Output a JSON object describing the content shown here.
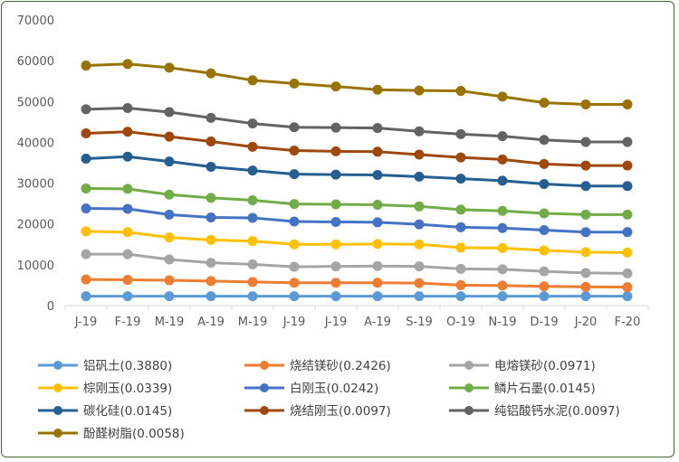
{
  "chart_data": {
    "type": "line",
    "title": "",
    "xlabel": "",
    "ylabel": "",
    "ylim": [
      0,
      70000
    ],
    "yticks": [
      0,
      10000,
      20000,
      30000,
      40000,
      50000,
      60000,
      70000
    ],
    "grid": false,
    "legend_position": "bottom",
    "categories": [
      "J-19",
      "F-19",
      "M-19",
      "A-19",
      "M-19",
      "J-19",
      "J-19",
      "A-19",
      "S-19",
      "O-19",
      "N-19",
      "D-19",
      "J-20",
      "F-20"
    ],
    "series": [
      {
        "name": "铝矾土(0.3880)",
        "color": "#5b9bd5",
        "values": [
          2300,
          2300,
          2300,
          2300,
          2300,
          2300,
          2300,
          2300,
          2300,
          2300,
          2300,
          2300,
          2300,
          2300
        ]
      },
      {
        "name": "烧结镁砂(0.2426)",
        "color": "#ed7d31",
        "values": [
          6400,
          6300,
          6200,
          6000,
          5800,
          5600,
          5600,
          5600,
          5500,
          5000,
          4900,
          4700,
          4600,
          4500
        ]
      },
      {
        "name": "电熔镁砂(0.0971)",
        "color": "#a5a5a5",
        "values": [
          12600,
          12600,
          11300,
          10500,
          10100,
          9500,
          9600,
          9700,
          9600,
          9000,
          8900,
          8400,
          8000,
          7900
        ]
      },
      {
        "name": "棕刚玉(0.0339)",
        "color": "#ffc000",
        "values": [
          18200,
          18000,
          16700,
          16100,
          15800,
          15000,
          15000,
          15100,
          15000,
          14200,
          14100,
          13500,
          13100,
          13000
        ]
      },
      {
        "name": "白刚玉(0.0242)",
        "color": "#4472c4",
        "values": [
          23800,
          23700,
          22300,
          21600,
          21500,
          20600,
          20500,
          20400,
          19900,
          19200,
          19000,
          18500,
          18000,
          18000
        ]
      },
      {
        "name": "鳞片石墨(0.0145)",
        "color": "#70ad47",
        "values": [
          28700,
          28600,
          27200,
          26400,
          25800,
          24900,
          24800,
          24700,
          24300,
          23500,
          23200,
          22600,
          22300,
          22300
        ]
      },
      {
        "name": "碳化硅(0.0145)",
        "color": "#255e91",
        "values": [
          36000,
          36500,
          35300,
          34000,
          33100,
          32200,
          32100,
          32000,
          31600,
          31100,
          30600,
          29800,
          29300,
          29300
        ]
      },
      {
        "name": "烧结刚玉(0.0097)",
        "color": "#9e480e",
        "values": [
          42200,
          42600,
          41400,
          40200,
          38900,
          38000,
          37800,
          37700,
          37000,
          36300,
          35800,
          34700,
          34300,
          34300
        ]
      },
      {
        "name": "纯铝酸钙水泥(0.0097)",
        "color": "#636363",
        "values": [
          48100,
          48400,
          47400,
          46000,
          44600,
          43700,
          43600,
          43500,
          42700,
          42000,
          41500,
          40600,
          40100,
          40100
        ]
      },
      {
        "name": "酚醛树脂(0.0058)",
        "color": "#997300",
        "values": [
          58800,
          59200,
          58300,
          56900,
          55200,
          54400,
          53700,
          52900,
          52700,
          52600,
          51200,
          49700,
          49300,
          49300
        ]
      }
    ]
  }
}
